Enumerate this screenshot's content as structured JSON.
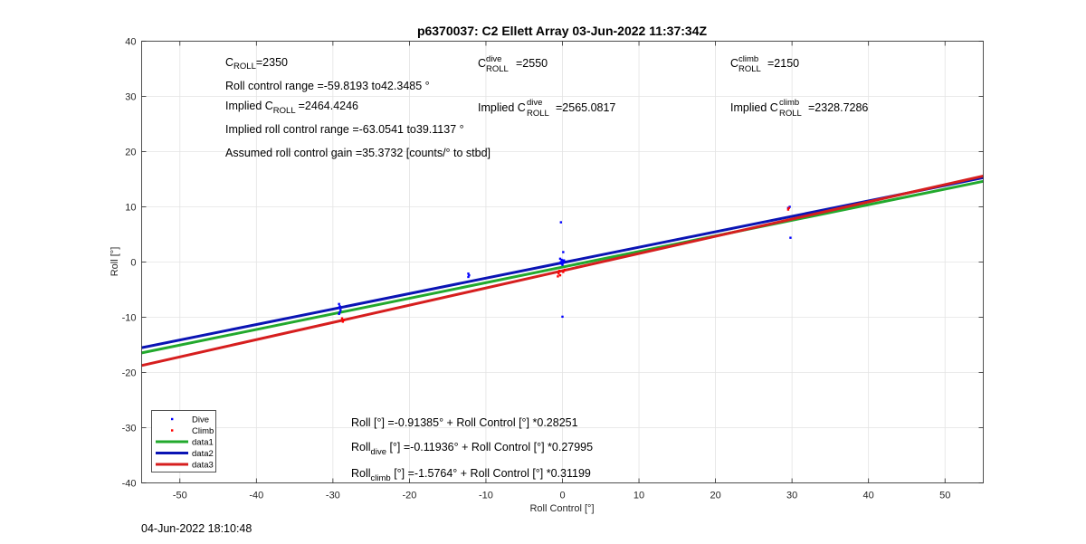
{
  "chart_data": {
    "type": "scatter",
    "title": "p6370037: C2 Ellett Array 03-Jun-2022 11:37:34Z",
    "xlabel": "Roll Control [°]",
    "ylabel": "Roll [°]",
    "xlim": [
      -55,
      55
    ],
    "ylim": [
      -40,
      40
    ],
    "xticks": [
      -50,
      -40,
      -30,
      -20,
      -10,
      0,
      10,
      20,
      30,
      40,
      50
    ],
    "yticks": [
      -40,
      -30,
      -20,
      -10,
      0,
      10,
      20,
      30,
      40
    ],
    "grid": true,
    "legend_position": "bottom-left",
    "colors": {
      "dive": "#0000ff",
      "climb": "#ff0000",
      "data1": "#22a92d",
      "data2": "#0a14b4",
      "data3": "#d61e1e"
    },
    "series": [
      {
        "name": "Dive",
        "mode": "markers",
        "points": [
          [
            -29.2,
            -7.6
          ],
          [
            -29.1,
            -8.0
          ],
          [
            -29.2,
            -8.3
          ],
          [
            -29.0,
            -8.7
          ],
          [
            -29.1,
            -9.1
          ],
          [
            -29.2,
            -9.4
          ],
          [
            -12.3,
            -2.1
          ],
          [
            -12.2,
            -2.4
          ],
          [
            -12.3,
            -2.7
          ],
          [
            -0.2,
            7.2
          ],
          [
            0.1,
            1.8
          ],
          [
            -0.3,
            0.6
          ],
          [
            -0.1,
            0.4
          ],
          [
            0.0,
            0.2
          ],
          [
            0.2,
            0.1
          ],
          [
            -0.2,
            0.0
          ],
          [
            0.1,
            -0.1
          ],
          [
            -0.1,
            -0.3
          ],
          [
            0.0,
            -0.5
          ],
          [
            0.2,
            0.3
          ],
          [
            -0.3,
            -0.2
          ],
          [
            0.0,
            -9.9
          ],
          [
            29.5,
            9.8
          ],
          [
            29.7,
            10.0
          ],
          [
            29.8,
            4.4
          ]
        ]
      },
      {
        "name": "Climb",
        "mode": "markers",
        "points": [
          [
            -28.8,
            -10.2
          ],
          [
            -28.6,
            -10.5
          ],
          [
            -28.7,
            -10.8
          ],
          [
            -0.4,
            -1.6
          ],
          [
            -0.5,
            -2.1
          ],
          [
            -0.3,
            -2.4
          ],
          [
            0.1,
            -1.8
          ],
          [
            -0.6,
            -2.6
          ],
          [
            0.3,
            -1.4
          ],
          [
            29.5,
            9.5
          ],
          [
            29.6,
            9.8
          ]
        ]
      },
      {
        "name": "data1",
        "mode": "line",
        "intercept": -0.91385,
        "slope": 0.28251
      },
      {
        "name": "data2",
        "mode": "line",
        "intercept": -0.11936,
        "slope": 0.27995
      },
      {
        "name": "data3",
        "mode": "line",
        "intercept": -1.5764,
        "slope": 0.31199
      }
    ],
    "annotations": {
      "c_roll_main": "C",
      "c_roll_sub": "ROLL",
      "c_roll_val": "=2350",
      "roll_range": "Roll control range =-59.8193 to42.3485 °",
      "implied_main": "Implied C",
      "implied_sub": "ROLL",
      "implied_val": "=2464.4246",
      "implied_range": "Implied roll control range =-63.0541 to39.1137 °",
      "gain": "Assumed roll control gain =35.3732 [counts/° to stbd]",
      "c_dive_main": "C",
      "c_dive_sup": "dive",
      "c_dive_sub": "ROLL",
      "c_dive_val": "=2550",
      "implied_dive_main": "Implied C",
      "implied_dive_sup": "dive",
      "implied_dive_sub": "ROLL",
      "implied_dive_val": "=2565.0817",
      "c_climb_main": "C",
      "c_climb_sup": "climb",
      "c_climb_sub": "ROLL",
      "c_climb_val": "=2150",
      "implied_climb_main": "Implied C",
      "implied_climb_sup": "climb",
      "implied_climb_sub": "ROLL",
      "implied_climb_val": "=2328.7286",
      "fit_all": "Roll [°] =-0.91385° + Roll Control [°] *0.28251",
      "fit_dive_main": "Roll",
      "fit_dive_sub": "dive",
      "fit_dive_rest": " [°] =-0.11936° + Roll Control [°] *0.27995",
      "fit_climb_main": "Roll",
      "fit_climb_sub": "climb",
      "fit_climb_rest": " [°] =-1.5764° + Roll Control [°] *0.31199"
    }
  },
  "footer_timestamp": "04-Jun-2022 18:10:48"
}
